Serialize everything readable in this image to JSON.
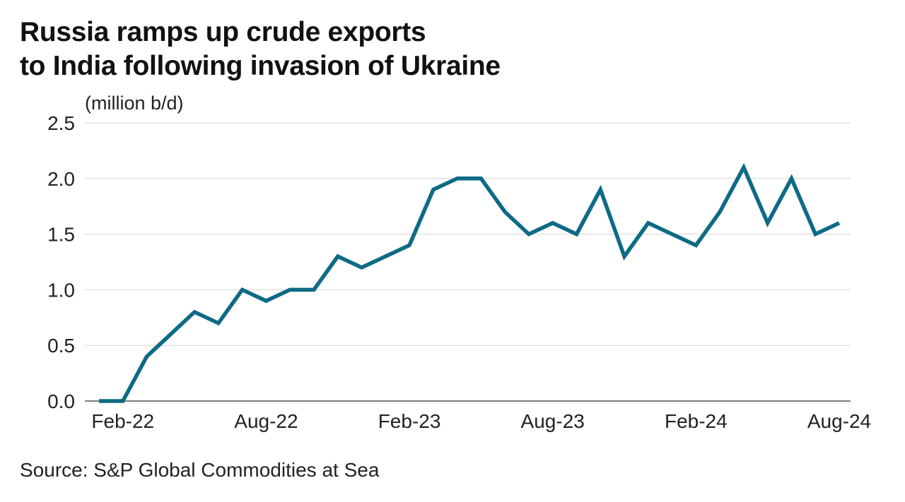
{
  "chart_data": {
    "type": "line",
    "title": [
      "Russia ramps up crude exports",
      "to India following invasion of Ukraine"
    ],
    "ylabel": "(million b/d)",
    "xlabel": "",
    "ylim": [
      0,
      2.5
    ],
    "yticks": [
      "0.0",
      "0.5",
      "1.0",
      "1.5",
      "2.0",
      "2.5"
    ],
    "xtick_labels": [
      {
        "label": "Feb-22",
        "index": 1
      },
      {
        "label": "Aug-22",
        "index": 7
      },
      {
        "label": "Feb-23",
        "index": 13
      },
      {
        "label": "Aug-23",
        "index": 19
      },
      {
        "label": "Feb-24",
        "index": 25
      },
      {
        "label": "Aug-24",
        "index": 31
      }
    ],
    "grid": true,
    "series": [
      {
        "name": "Russia crude exports to India",
        "color": "#0e6a85",
        "x": [
          "Jan-22",
          "Feb-22",
          "Mar-22",
          "Apr-22",
          "May-22",
          "Jun-22",
          "Jul-22",
          "Aug-22",
          "Sep-22",
          "Oct-22",
          "Nov-22",
          "Dec-22",
          "Jan-23",
          "Feb-23",
          "Mar-23",
          "Apr-23",
          "May-23",
          "Jun-23",
          "Jul-23",
          "Aug-23",
          "Sep-23",
          "Oct-23",
          "Nov-23",
          "Dec-23",
          "Jan-24",
          "Feb-24",
          "Mar-24",
          "Apr-24",
          "May-24",
          "Jun-24",
          "Jul-24",
          "Aug-24"
        ],
        "values": [
          0,
          0,
          0.4,
          0.6,
          0.8,
          0.7,
          1.0,
          0.9,
          1.0,
          1.0,
          1.3,
          1.2,
          1.3,
          1.4,
          1.9,
          2.0,
          2.0,
          1.7,
          1.5,
          1.6,
          1.5,
          1.9,
          1.3,
          1.6,
          1.5,
          1.4,
          1.7,
          2.1,
          1.6,
          2.0,
          1.5,
          1.6
        ]
      }
    ],
    "source": "Source: S&P Global Commodities at Sea"
  }
}
